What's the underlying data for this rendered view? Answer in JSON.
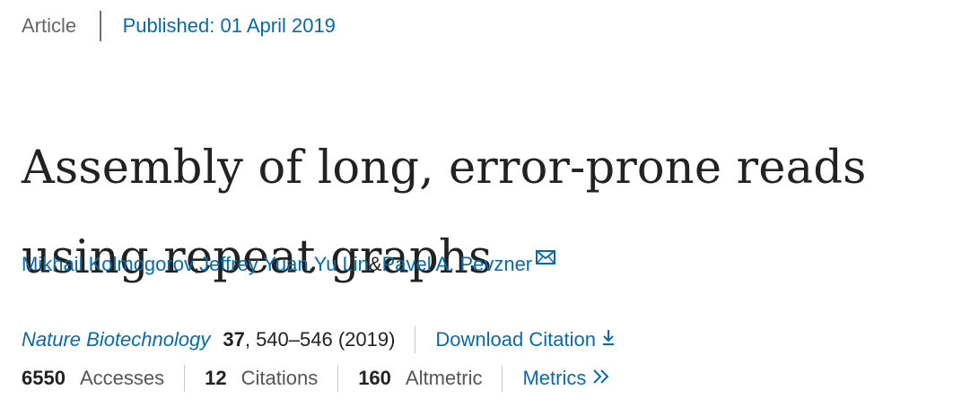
{
  "header": {
    "article_type": "Article",
    "published": "Published: 01 April 2019"
  },
  "title": {
    "line1": "Assembly of long, error-prone reads",
    "line2": "using repeat graphs"
  },
  "authors": [
    {
      "name": "Mikhail Kolmogorov",
      "sep": ", "
    },
    {
      "name": "Jeffrey Yuan",
      "sep": ", "
    },
    {
      "name": "Yu Lin",
      "sep": " & "
    },
    {
      "name": "Pavel A. Pevzner",
      "sep": ""
    }
  ],
  "citation": {
    "journal": "Nature Biotechnology",
    "volume": "37",
    "pages": ", 540–546 (2019)",
    "download_label": "Download Citation"
  },
  "metrics": {
    "accesses_value": "6550",
    "accesses_label": "Accesses",
    "citations_value": "12",
    "citations_label": "Citations",
    "altmetric_value": "160",
    "altmetric_label": "Altmetric",
    "metrics_link": "Metrics"
  },
  "icons": {
    "contact": "mail-icon",
    "download": "download-icon",
    "metrics": "double-chevron-right-icon"
  },
  "colors": {
    "link": "#0a6aa8",
    "text": "#222222",
    "muted": "#666666"
  }
}
